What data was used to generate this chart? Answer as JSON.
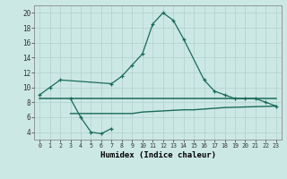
{
  "line1_x": [
    0,
    1,
    2,
    7,
    8,
    9,
    10,
    11,
    12,
    13,
    14,
    16,
    17,
    18,
    19,
    20,
    21,
    22,
    23
  ],
  "line1_y": [
    9,
    10,
    11,
    10.5,
    11.5,
    13,
    14.5,
    18.5,
    20,
    19,
    16.5,
    11,
    9.5,
    9,
    8.5,
    8.5,
    8.5,
    8,
    7.5
  ],
  "line2_x": [
    3,
    4,
    5,
    6,
    7
  ],
  "line2_y": [
    8.5,
    6.0,
    4.0,
    3.8,
    4.5
  ],
  "line3_x": [
    0,
    3,
    23
  ],
  "line3_y": [
    8.5,
    8.5,
    8.5
  ],
  "line4_x": [
    3,
    9,
    10,
    14,
    15,
    17,
    18,
    23
  ],
  "line4_y": [
    6.5,
    6.5,
    6.7,
    7.0,
    7.0,
    7.2,
    7.3,
    7.5
  ],
  "line_color": "#1a6b5a",
  "bg_color": "#cce8e4",
  "grid_color": "#b0d0cc",
  "xlabel": "Humidex (Indice chaleur)",
  "yticks": [
    4,
    6,
    8,
    10,
    12,
    14,
    16,
    18,
    20
  ],
  "xlim": [
    -0.5,
    23.5
  ],
  "ylim": [
    3.0,
    21.0
  ]
}
